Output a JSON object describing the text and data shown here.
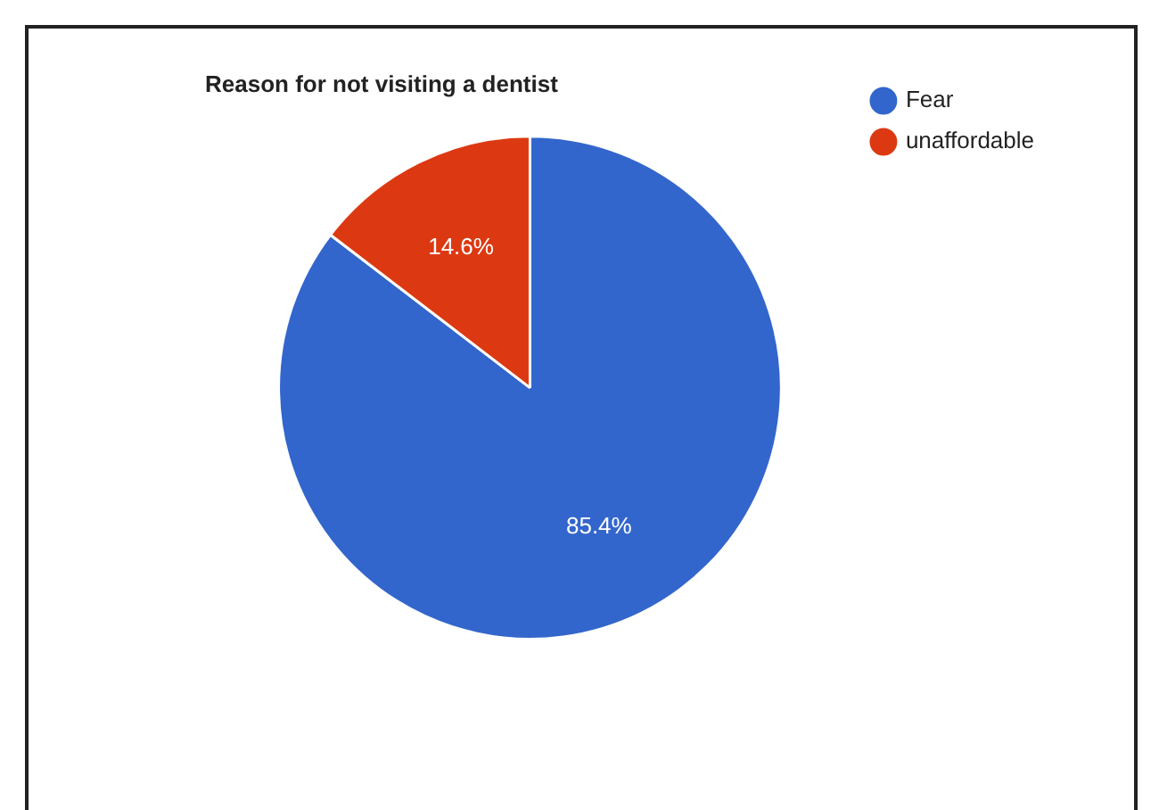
{
  "chart_data": {
    "type": "pie",
    "title": "Reason for not visiting a dentist",
    "categories": [
      "Fear",
      "unaffordable"
    ],
    "values": [
      85.4,
      14.6
    ],
    "colors": [
      "#3366cc",
      "#dc3912"
    ],
    "value_labels": [
      "85.4%",
      "14.6%"
    ],
    "legend": "top right"
  }
}
